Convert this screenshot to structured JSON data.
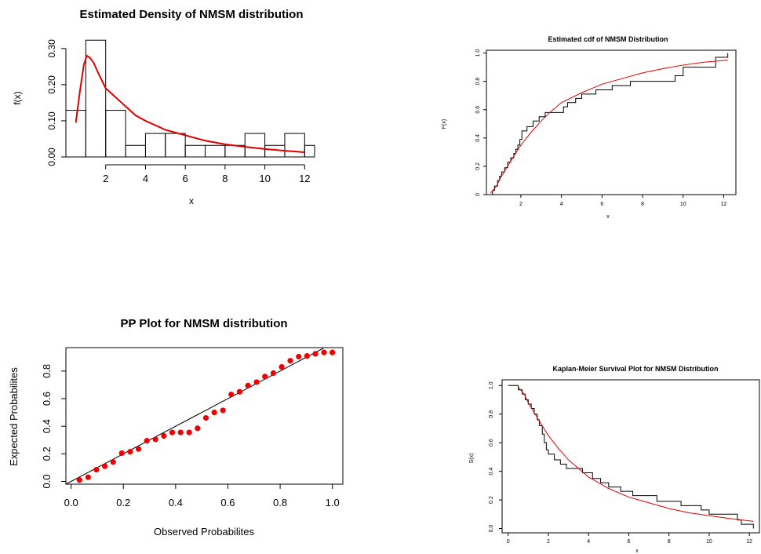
{
  "chart_data": [
    {
      "type": "histogram",
      "title": "Estimated Density of NMSM distribution",
      "xlabel": "x",
      "ylabel": "f(x)",
      "xlim": [
        0,
        12.5
      ],
      "ylim": [
        0,
        0.33
      ],
      "xticks": [
        "2",
        "4",
        "6",
        "8",
        "10",
        "12"
      ],
      "yticks": [
        "0.00",
        "0.10",
        "0.20",
        "0.30"
      ],
      "bins": [
        {
          "x0": 0,
          "x1": 1,
          "density": 0.129
        },
        {
          "x0": 1,
          "x1": 2,
          "density": 0.323
        },
        {
          "x0": 2,
          "x1": 3,
          "density": 0.129
        },
        {
          "x0": 3,
          "x1": 4,
          "density": 0.032
        },
        {
          "x0": 4,
          "x1": 5,
          "density": 0.065
        },
        {
          "x0": 5,
          "x1": 6,
          "density": 0.065
        },
        {
          "x0": 6,
          "x1": 7,
          "density": 0.032
        },
        {
          "x0": 7,
          "x1": 8,
          "density": 0.032
        },
        {
          "x0": 8,
          "x1": 9,
          "density": 0.032
        },
        {
          "x0": 9,
          "x1": 10,
          "density": 0.065
        },
        {
          "x0": 10,
          "x1": 11,
          "density": 0.032
        },
        {
          "x0": 11,
          "x1": 12,
          "density": 0.065
        },
        {
          "x0": 12,
          "x1": 13,
          "density": 0.032
        }
      ],
      "curve": {
        "color": "#e00000",
        "x": [
          0.5,
          0.7,
          0.9,
          1.05,
          1.2,
          1.4,
          1.6,
          2.0,
          2.5,
          3.0,
          3.5,
          4.0,
          5.0,
          6.0,
          7.0,
          8.0,
          9.0,
          10.0,
          11.0,
          12.0
        ],
        "y": [
          0.095,
          0.18,
          0.255,
          0.28,
          0.275,
          0.26,
          0.235,
          0.19,
          0.165,
          0.14,
          0.115,
          0.1,
          0.075,
          0.06,
          0.045,
          0.035,
          0.028,
          0.022,
          0.017,
          0.013
        ]
      }
    },
    {
      "type": "step",
      "title": "Estimated cdf of NMSM Distribution",
      "xlabel": "x",
      "ylabel": "F(x)",
      "xlim": [
        0.3,
        12.6
      ],
      "ylim": [
        0,
        1.02
      ],
      "xticks": [
        "2",
        "4",
        "6",
        "8",
        "10",
        "12"
      ],
      "yticks": [
        "0",
        "0.2",
        "0.4",
        "0.6",
        "0.8",
        "1.0"
      ],
      "empirical": {
        "x": [
          0.6,
          0.7,
          0.85,
          0.95,
          1.05,
          1.2,
          1.35,
          1.5,
          1.65,
          1.75,
          1.85,
          1.95,
          2.05,
          2.3,
          2.6,
          2.9,
          3.2,
          3.5,
          4.1,
          4.3,
          4.7,
          5.0,
          5.3,
          5.7,
          6.1,
          6.5,
          7.4,
          8.6,
          9.6,
          10.0,
          11.4,
          11.6,
          12.2
        ],
        "y": [
          0.03,
          0.06,
          0.1,
          0.13,
          0.16,
          0.19,
          0.23,
          0.26,
          0.29,
          0.32,
          0.35,
          0.39,
          0.45,
          0.48,
          0.52,
          0.55,
          0.58,
          0.58,
          0.62,
          0.65,
          0.68,
          0.71,
          0.71,
          0.74,
          0.74,
          0.77,
          0.8,
          0.8,
          0.84,
          0.9,
          0.9,
          0.97,
          1.0
        ]
      },
      "curve": {
        "color": "#e00000",
        "x": [
          0.5,
          0.8,
          1.0,
          1.3,
          1.6,
          2.0,
          2.5,
          3.0,
          3.5,
          4.0,
          5.0,
          6.0,
          7.0,
          8.0,
          9.0,
          10.0,
          11.0,
          12.2
        ],
        "y": [
          0.01,
          0.06,
          0.12,
          0.19,
          0.26,
          0.35,
          0.44,
          0.52,
          0.59,
          0.65,
          0.72,
          0.78,
          0.82,
          0.86,
          0.89,
          0.915,
          0.935,
          0.95
        ]
      }
    },
    {
      "type": "scatter",
      "title": "PP Plot for NMSM distribution",
      "xlabel": "Observed Probabilites",
      "ylabel": "Expected Probabilites",
      "xlim": [
        -0.02,
        1.04
      ],
      "ylim": [
        -0.02,
        0.97
      ],
      "xticks": [
        "0.0",
        "0.2",
        "0.4",
        "0.6",
        "0.8",
        "1.0"
      ],
      "yticks": [
        "0.0",
        "0.2",
        "0.4",
        "0.6",
        "0.8"
      ],
      "reference_line": {
        "from": [
          0,
          0
        ],
        "to": [
          1,
          1
        ]
      },
      "points_color": "#ee0000",
      "x": [
        0.032,
        0.065,
        0.097,
        0.129,
        0.161,
        0.194,
        0.226,
        0.258,
        0.29,
        0.323,
        0.355,
        0.387,
        0.419,
        0.452,
        0.484,
        0.516,
        0.548,
        0.581,
        0.613,
        0.645,
        0.677,
        0.71,
        0.742,
        0.774,
        0.806,
        0.839,
        0.871,
        0.903,
        0.935,
        0.968,
        1.0
      ],
      "y": [
        0.01,
        0.03,
        0.085,
        0.11,
        0.14,
        0.205,
        0.215,
        0.235,
        0.295,
        0.305,
        0.33,
        0.355,
        0.355,
        0.355,
        0.385,
        0.46,
        0.5,
        0.515,
        0.63,
        0.65,
        0.695,
        0.72,
        0.76,
        0.785,
        0.83,
        0.875,
        0.905,
        0.91,
        0.925,
        0.935,
        0.935
      ]
    },
    {
      "type": "step",
      "title": "Kaplan-Meier Survival Plot for NMSM Distribution",
      "xlabel": "x",
      "ylabel": "S(x)",
      "xlim": [
        -0.3,
        12.5
      ],
      "ylim": [
        -0.03,
        1.04
      ],
      "xticks": [
        "0",
        "2",
        "4",
        "6",
        "8",
        "10",
        "12"
      ],
      "yticks": [
        "0.0",
        "0.2",
        "0.4",
        "0.6",
        "0.8",
        "1.0"
      ],
      "empirical": {
        "x": [
          0.0,
          0.5,
          0.7,
          0.85,
          1.0,
          1.15,
          1.3,
          1.45,
          1.55,
          1.7,
          1.8,
          1.9,
          2.0,
          2.1,
          2.3,
          2.6,
          2.9,
          3.3,
          3.7,
          4.2,
          4.6,
          5.0,
          5.6,
          6.2,
          6.6,
          7.4,
          8.6,
          9.6,
          10.0,
          11.4,
          11.6,
          12.2
        ],
        "y": [
          1.0,
          0.97,
          0.94,
          0.9,
          0.87,
          0.84,
          0.8,
          0.76,
          0.72,
          0.66,
          0.6,
          0.55,
          0.52,
          0.52,
          0.48,
          0.45,
          0.42,
          0.42,
          0.39,
          0.35,
          0.32,
          0.29,
          0.26,
          0.23,
          0.23,
          0.19,
          0.16,
          0.13,
          0.1,
          0.06,
          0.03,
          0.0
        ]
      },
      "curve": {
        "color": "#e00000",
        "x": [
          0.5,
          0.8,
          1.0,
          1.3,
          1.6,
          2.0,
          2.5,
          3.0,
          3.5,
          4.0,
          5.0,
          6.0,
          7.0,
          8.0,
          9.0,
          10.0,
          11.0,
          12.2
        ],
        "y": [
          0.99,
          0.94,
          0.88,
          0.81,
          0.74,
          0.65,
          0.56,
          0.48,
          0.42,
          0.36,
          0.28,
          0.22,
          0.18,
          0.14,
          0.11,
          0.09,
          0.07,
          0.05
        ]
      }
    }
  ]
}
